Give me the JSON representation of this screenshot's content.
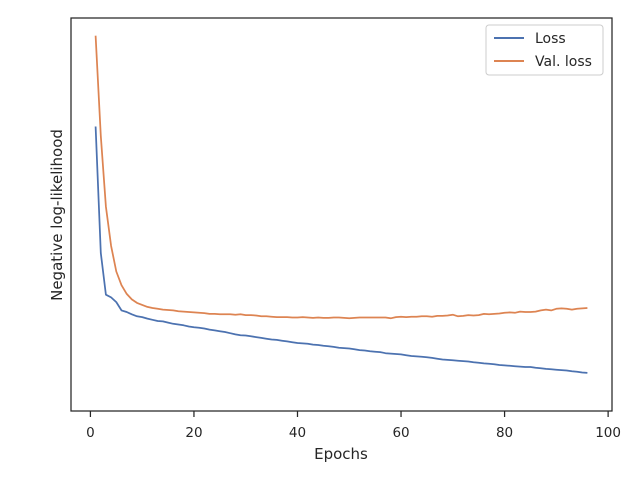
{
  "chart_data": {
    "type": "line",
    "title": "",
    "xlabel": "Epochs",
    "ylabel": "Negative log-likelihood",
    "xlim": [
      -3.75,
      100.75
    ],
    "ylim": [
      0.0,
      1.0
    ],
    "x_ticks": [
      0,
      20,
      40,
      60,
      80,
      100
    ],
    "y_ticks_shown": false,
    "grid": false,
    "legend_position": "top-right",
    "series": [
      {
        "name": "Loss",
        "color": "#4c72b0",
        "x": [
          1,
          2,
          3,
          4,
          5,
          6,
          7,
          8,
          9,
          10,
          11,
          12,
          13,
          14,
          15,
          16,
          17,
          18,
          19,
          20,
          21,
          22,
          23,
          24,
          25,
          26,
          27,
          28,
          29,
          30,
          31,
          32,
          33,
          34,
          35,
          36,
          37,
          38,
          39,
          40,
          41,
          42,
          43,
          44,
          45,
          46,
          47,
          48,
          49,
          50,
          51,
          52,
          53,
          54,
          55,
          56,
          57,
          58,
          59,
          60,
          61,
          62,
          63,
          64,
          65,
          66,
          67,
          68,
          69,
          70,
          71,
          72,
          73,
          74,
          75,
          76,
          77,
          78,
          79,
          80,
          81,
          82,
          83,
          84,
          85,
          86,
          87,
          88,
          89,
          90,
          91,
          92,
          93,
          94,
          95,
          96
        ],
        "y": [
          0.724,
          0.402,
          0.296,
          0.289,
          0.277,
          0.256,
          0.252,
          0.246,
          0.241,
          0.239,
          0.235,
          0.232,
          0.229,
          0.228,
          0.225,
          0.222,
          0.22,
          0.218,
          0.215,
          0.213,
          0.212,
          0.21,
          0.207,
          0.205,
          0.203,
          0.201,
          0.198,
          0.195,
          0.193,
          0.192,
          0.19,
          0.188,
          0.186,
          0.184,
          0.182,
          0.181,
          0.179,
          0.177,
          0.175,
          0.173,
          0.172,
          0.171,
          0.169,
          0.168,
          0.166,
          0.165,
          0.163,
          0.161,
          0.16,
          0.159,
          0.157,
          0.155,
          0.154,
          0.152,
          0.151,
          0.15,
          0.147,
          0.146,
          0.145,
          0.144,
          0.142,
          0.14,
          0.139,
          0.138,
          0.137,
          0.135,
          0.133,
          0.131,
          0.13,
          0.129,
          0.128,
          0.127,
          0.126,
          0.124,
          0.123,
          0.121,
          0.12,
          0.119,
          0.117,
          0.116,
          0.115,
          0.114,
          0.113,
          0.112,
          0.112,
          0.11,
          0.109,
          0.107,
          0.106,
          0.105,
          0.104,
          0.103,
          0.101,
          0.1,
          0.098,
          0.097
        ]
      },
      {
        "name": "Val. loss",
        "color": "#dd8452",
        "x": [
          1,
          2,
          3,
          4,
          5,
          6,
          7,
          8,
          9,
          10,
          11,
          12,
          13,
          14,
          15,
          16,
          17,
          18,
          19,
          20,
          21,
          22,
          23,
          24,
          25,
          26,
          27,
          28,
          29,
          30,
          31,
          32,
          33,
          34,
          35,
          36,
          37,
          38,
          39,
          40,
          41,
          42,
          43,
          44,
          45,
          46,
          47,
          48,
          49,
          50,
          51,
          52,
          53,
          54,
          55,
          56,
          57,
          58,
          59,
          60,
          61,
          62,
          63,
          64,
          65,
          66,
          67,
          68,
          69,
          70,
          71,
          72,
          73,
          74,
          75,
          76,
          77,
          78,
          79,
          80,
          81,
          82,
          83,
          84,
          85,
          86,
          87,
          88,
          89,
          90,
          91,
          92,
          93,
          94,
          95,
          96
        ],
        "y": [
          0.955,
          0.7,
          0.52,
          0.42,
          0.355,
          0.32,
          0.298,
          0.284,
          0.275,
          0.27,
          0.265,
          0.262,
          0.26,
          0.258,
          0.257,
          0.256,
          0.254,
          0.253,
          0.252,
          0.251,
          0.25,
          0.249,
          0.247,
          0.247,
          0.246,
          0.246,
          0.246,
          0.245,
          0.246,
          0.244,
          0.244,
          0.243,
          0.241,
          0.241,
          0.24,
          0.239,
          0.239,
          0.239,
          0.238,
          0.238,
          0.239,
          0.238,
          0.237,
          0.238,
          0.237,
          0.237,
          0.238,
          0.238,
          0.237,
          0.236,
          0.237,
          0.238,
          0.238,
          0.238,
          0.238,
          0.238,
          0.238,
          0.236,
          0.239,
          0.24,
          0.239,
          0.24,
          0.24,
          0.241,
          0.241,
          0.24,
          0.242,
          0.242,
          0.243,
          0.245,
          0.241,
          0.242,
          0.244,
          0.243,
          0.244,
          0.247,
          0.246,
          0.247,
          0.248,
          0.25,
          0.251,
          0.25,
          0.253,
          0.252,
          0.252,
          0.253,
          0.256,
          0.258,
          0.256,
          0.26,
          0.261,
          0.26,
          0.258,
          0.26,
          0.261,
          0.262
        ]
      }
    ]
  }
}
